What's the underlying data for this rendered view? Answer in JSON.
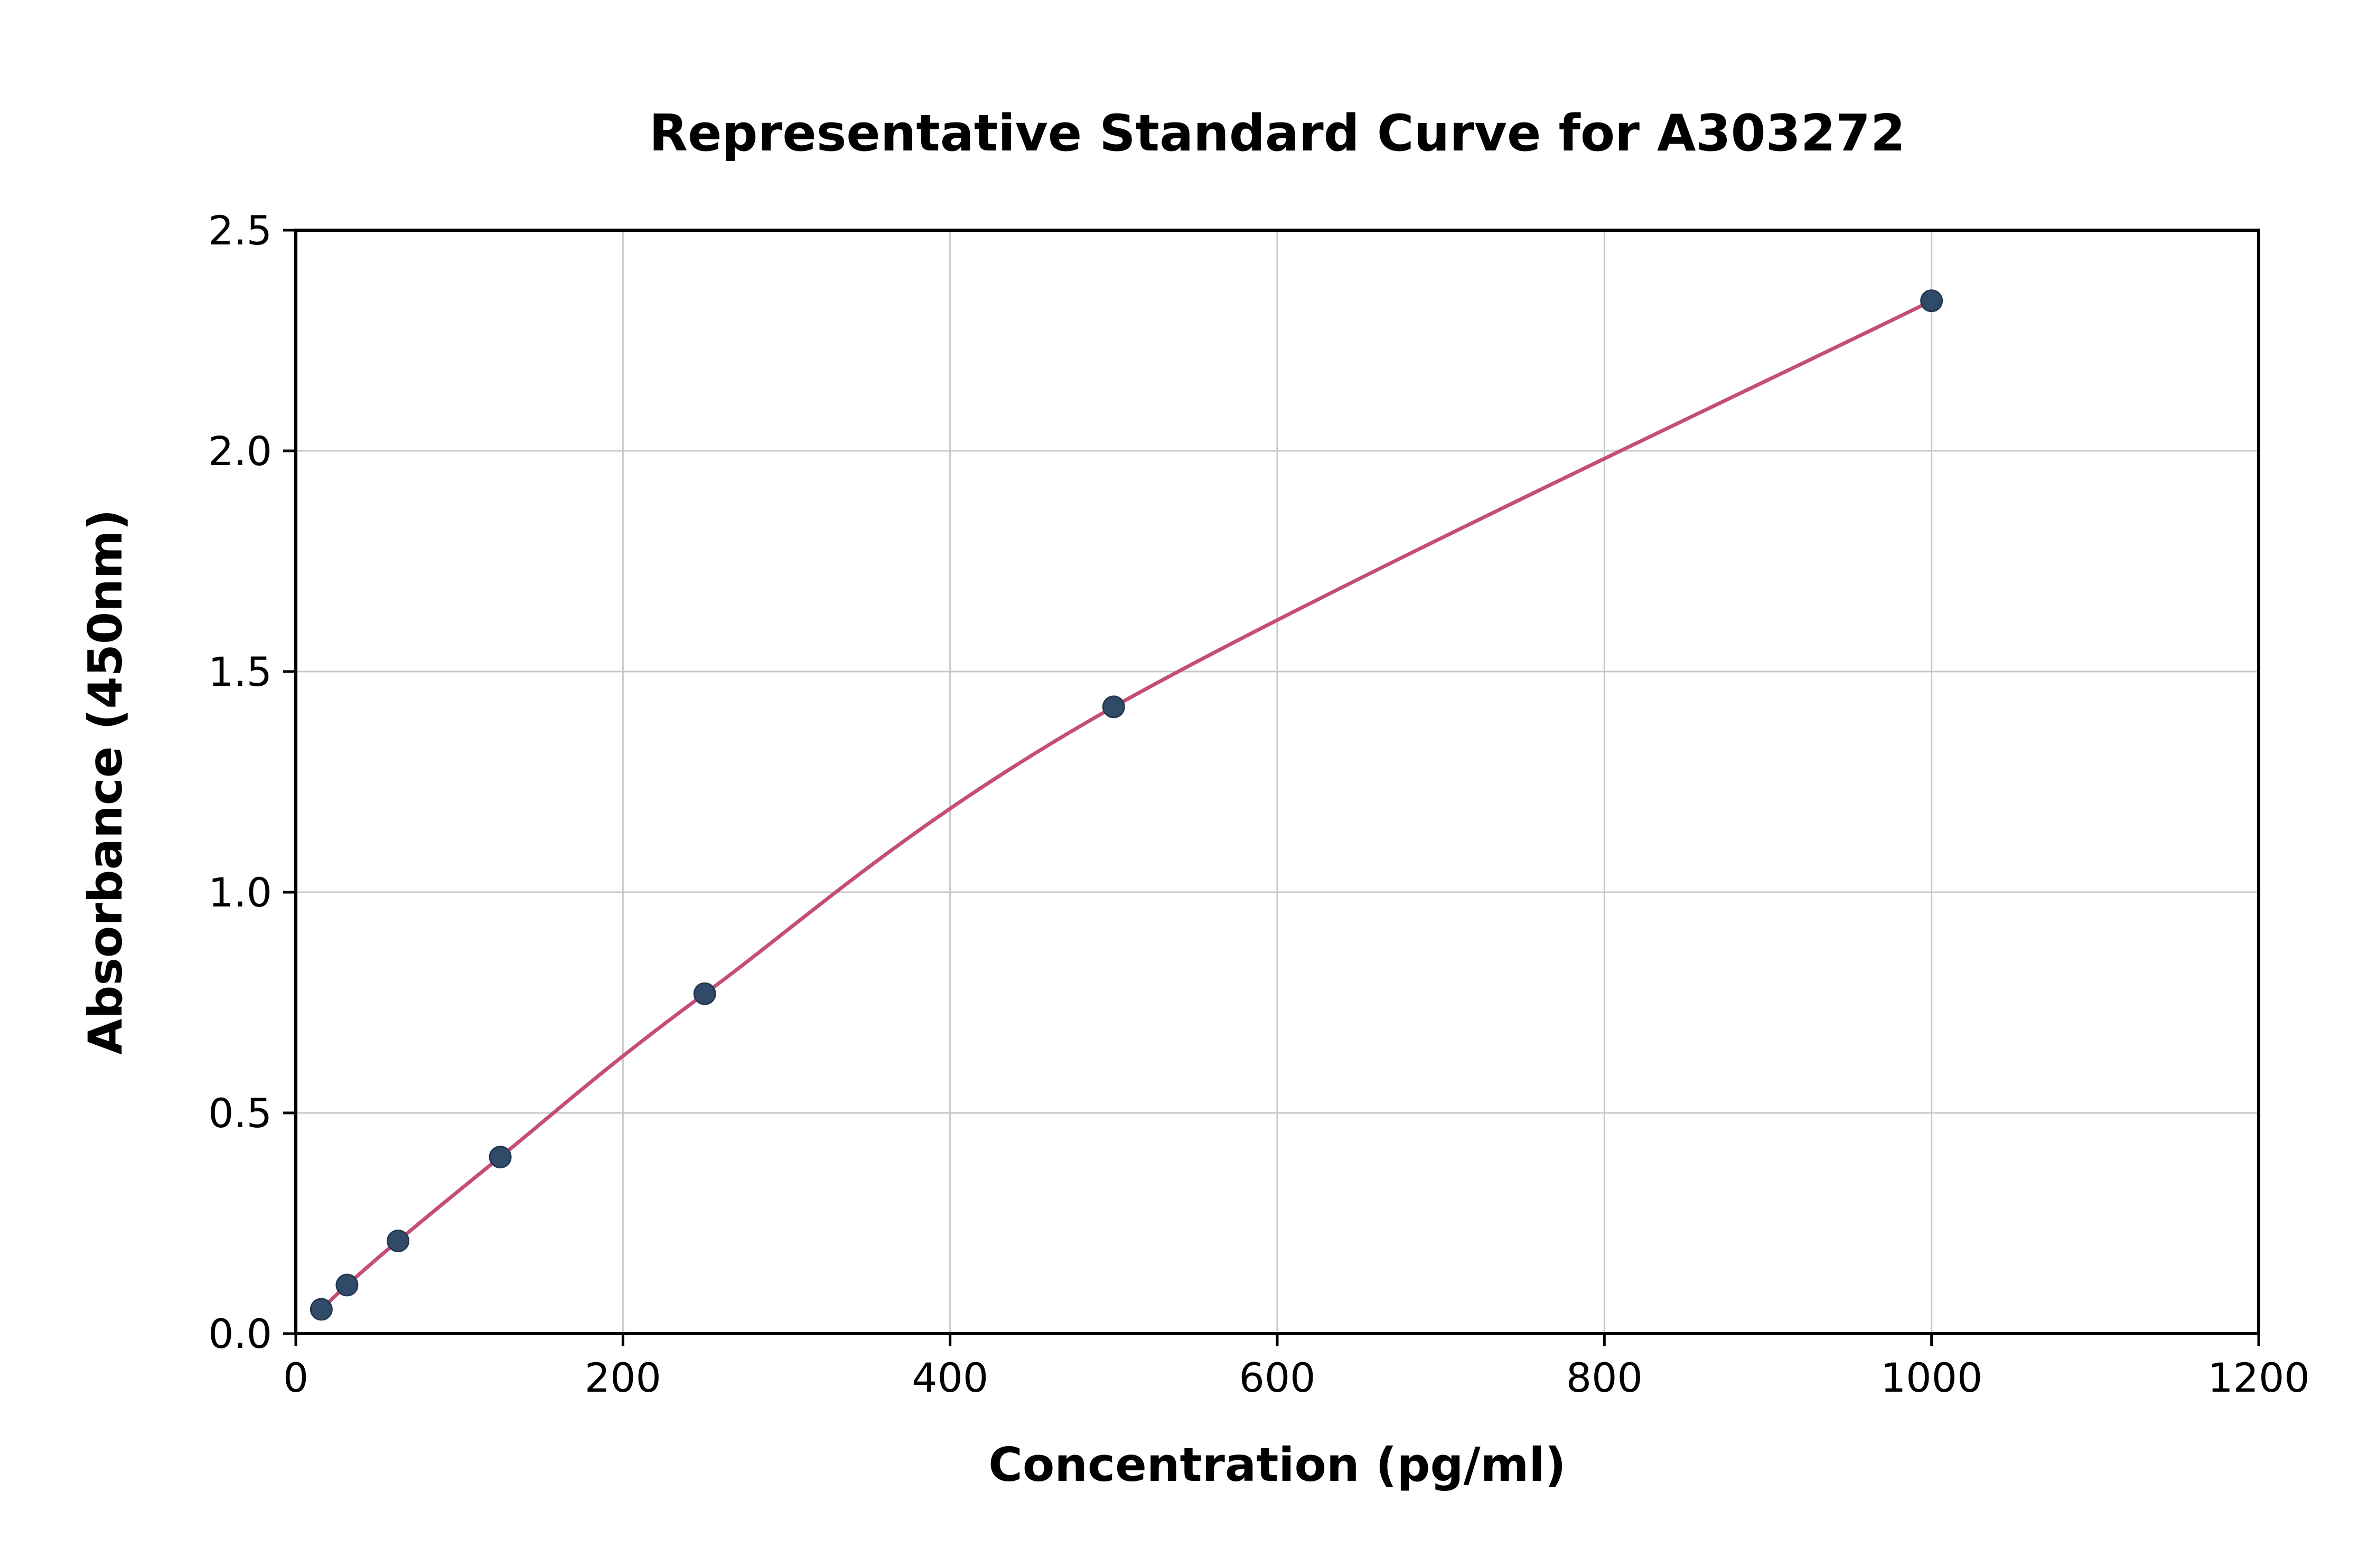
{
  "chart_data": {
    "type": "scatter",
    "title": "Representative Standard Curve for A303272",
    "xlabel": "Concentration (pg/ml)",
    "ylabel": "Absorbance (450nm)",
    "xlim": [
      0,
      1200
    ],
    "ylim": [
      0,
      2.5
    ],
    "xticks": [
      0,
      200,
      400,
      600,
      800,
      1000,
      1200
    ],
    "ytick_labels": [
      "0.0",
      "0.5",
      "1.0",
      "1.5",
      "2.0",
      "2.5"
    ],
    "ytick_values": [
      0.0,
      0.5,
      1.0,
      1.5,
      2.0,
      2.5
    ],
    "grid": true,
    "legend": "none",
    "points": [
      {
        "x": 15.6,
        "y": 0.055
      },
      {
        "x": 31.3,
        "y": 0.11
      },
      {
        "x": 62.5,
        "y": 0.21
      },
      {
        "x": 125,
        "y": 0.4
      },
      {
        "x": 250,
        "y": 0.77
      },
      {
        "x": 500,
        "y": 1.42
      },
      {
        "x": 1000,
        "y": 2.34
      }
    ],
    "colors": {
      "curve": "#c44e78",
      "point_fill": "#2f4b68",
      "point_edge": "#24394f",
      "grid": "#c9c9c9",
      "spine": "#000000"
    }
  }
}
